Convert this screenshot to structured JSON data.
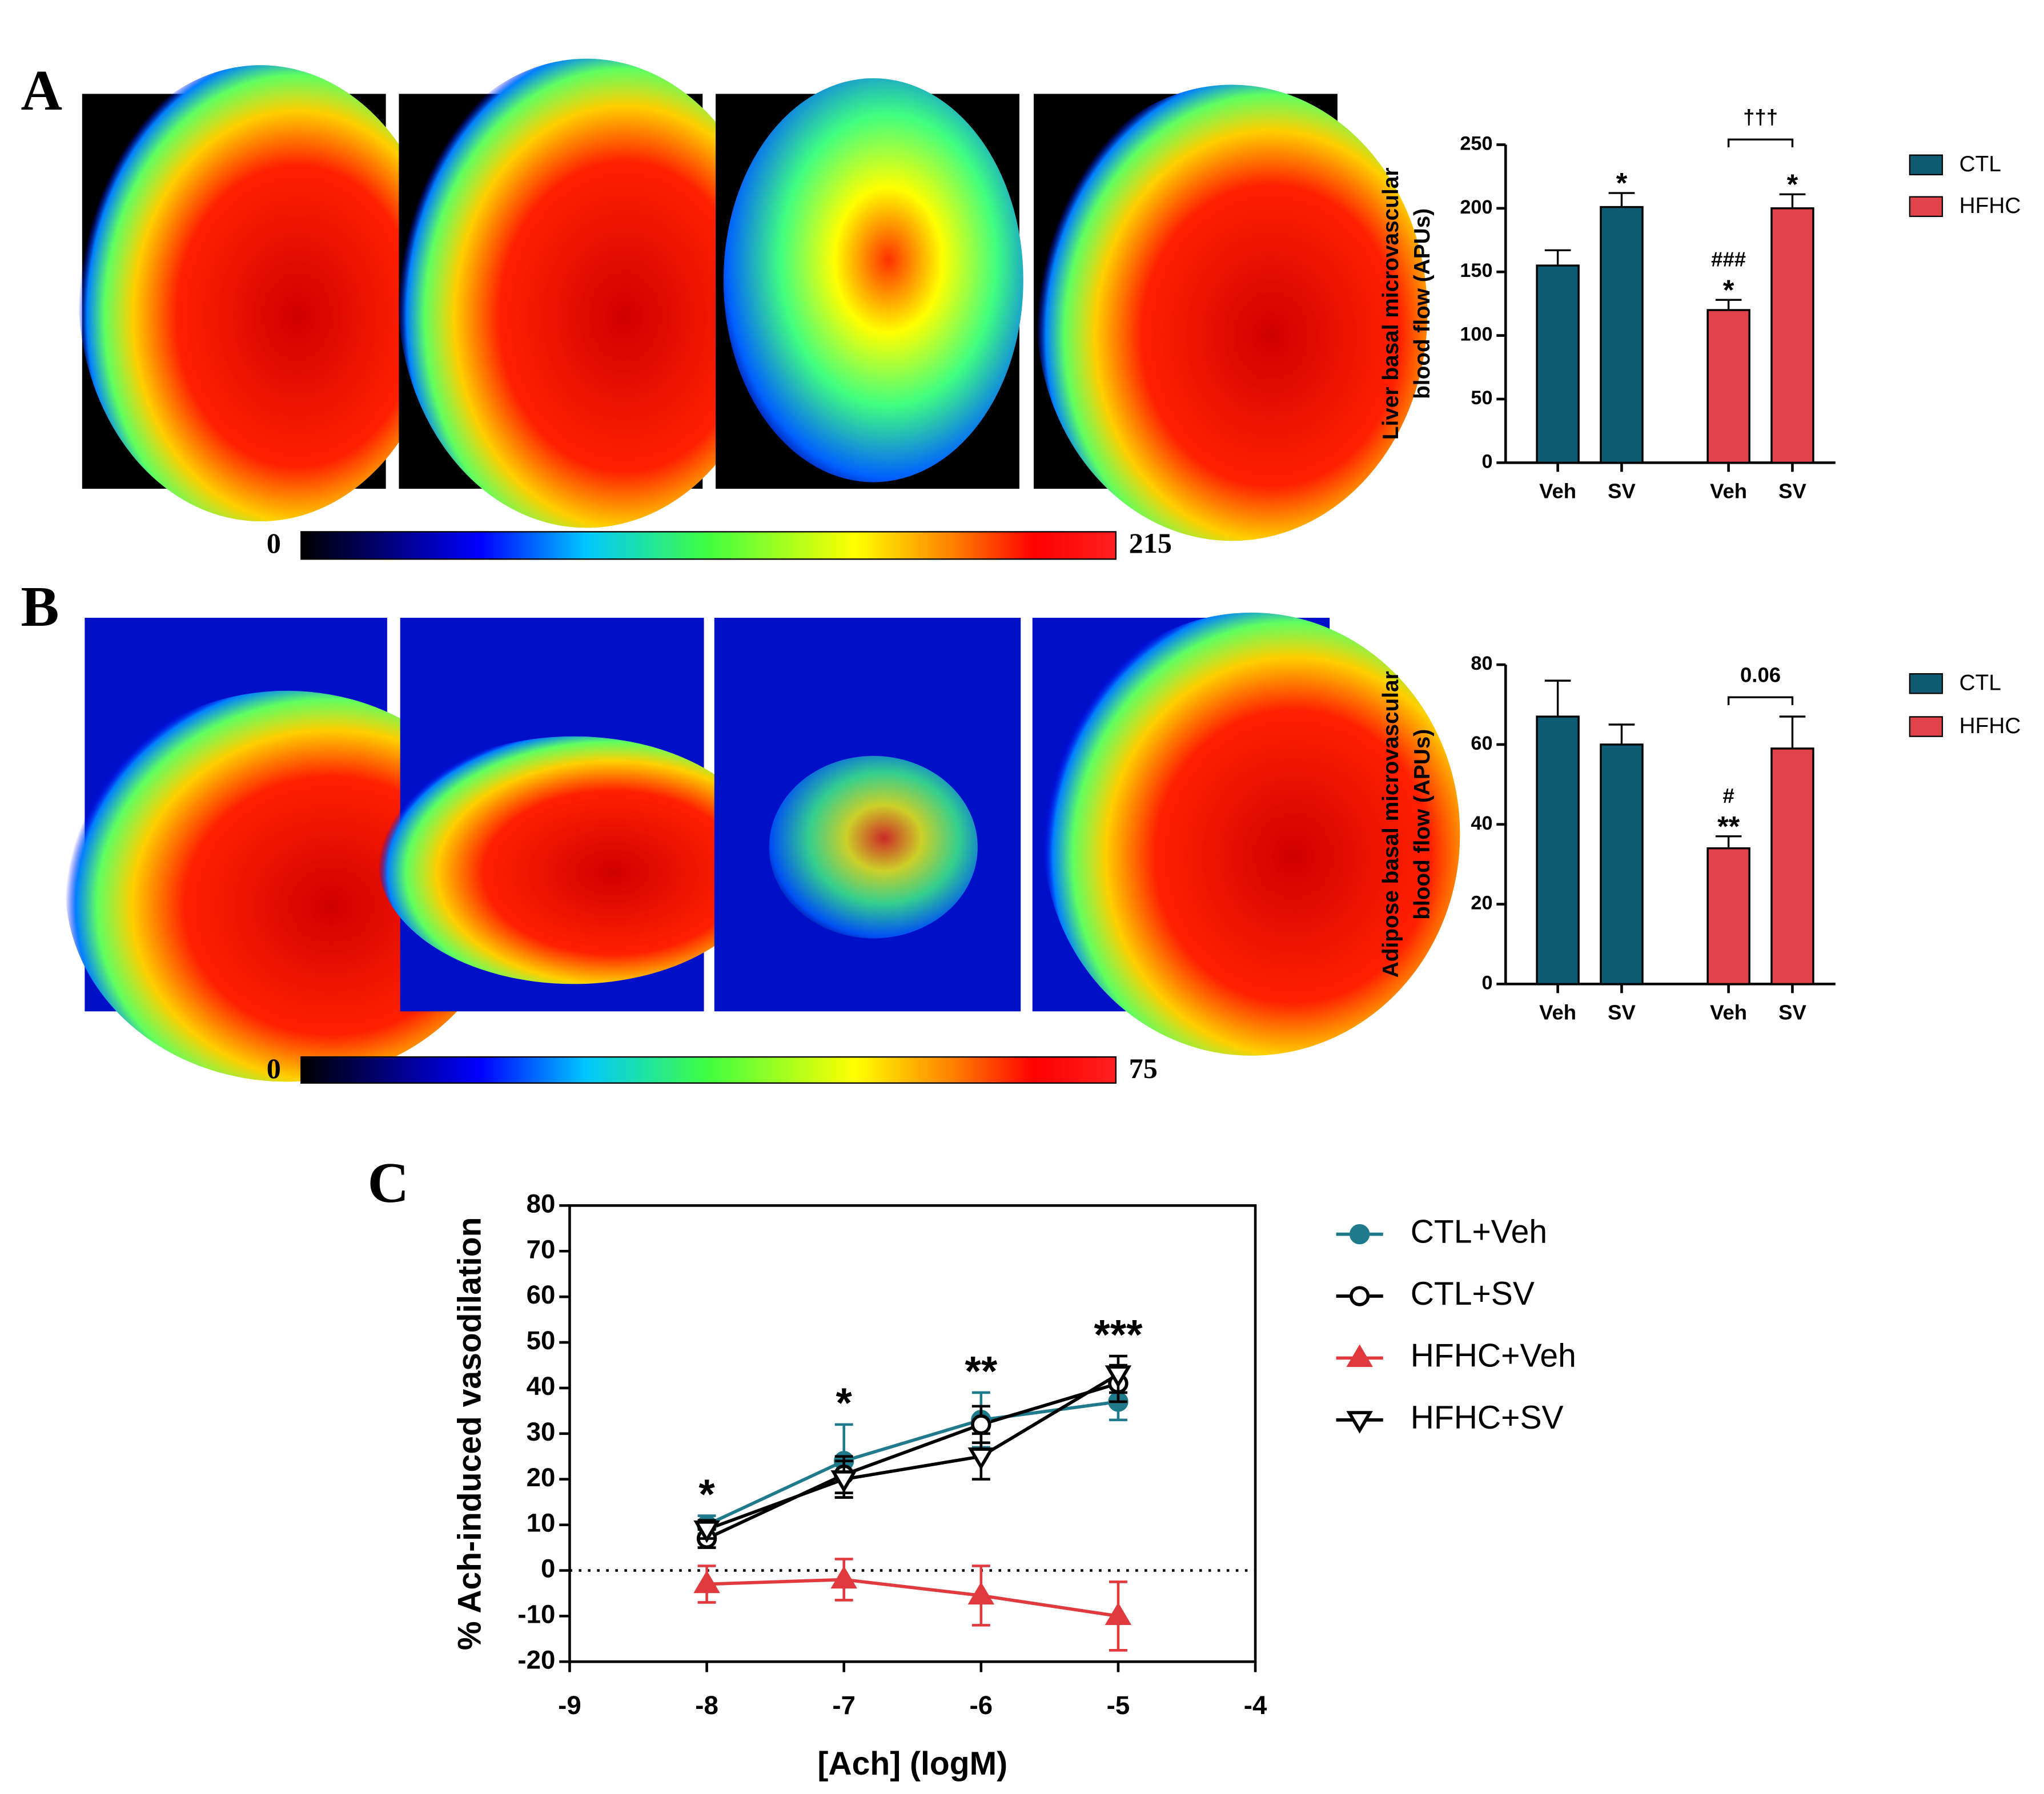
{
  "panel_labels": [
    "A",
    "B",
    "C"
  ],
  "colorbars": [
    {
      "min": 0,
      "max": 215
    },
    {
      "min": 0,
      "max": 75
    }
  ],
  "chart_data": [
    {
      "type": "bar",
      "y_label": [
        "Liver basal microvascular",
        "blood flow (APUs)"
      ],
      "categories": [
        "Veh",
        "SV",
        "Veh",
        "SV"
      ],
      "series": [
        {
          "name": "CTL",
          "color": "#0d5c73",
          "values": [
            155,
            201,
            null,
            null
          ],
          "errors": [
            12,
            11,
            null,
            null
          ],
          "labels": [
            null,
            "*",
            null,
            null
          ]
        },
        {
          "name": "HFHC",
          "color": "#e0444a",
          "values": [
            null,
            null,
            120,
            200
          ],
          "errors": [
            null,
            null,
            8,
            11
          ],
          "labels": [
            null,
            null,
            [
              "###",
              "*"
            ],
            "*"
          ]
        }
      ],
      "comparison": "†††",
      "ylim": [
        0,
        250
      ],
      "yticks": [
        0,
        50,
        100,
        150,
        200,
        250
      ]
    },
    {
      "type": "bar",
      "y_label": [
        "Adipose basal microvascular",
        "blood flow (APUs)"
      ],
      "categories": [
        "Veh",
        "SV",
        "Veh",
        "SV"
      ],
      "series": [
        {
          "name": "CTL",
          "color": "#0d5c73",
          "values": [
            67,
            60,
            null,
            null
          ],
          "errors": [
            9,
            5,
            null,
            null
          ],
          "labels": [
            null,
            null,
            null,
            null
          ]
        },
        {
          "name": "HFHC",
          "color": "#e0444a",
          "values": [
            null,
            null,
            34,
            59
          ],
          "errors": [
            null,
            null,
            3,
            8
          ],
          "labels": [
            null,
            null,
            [
              "#",
              "**"
            ],
            null
          ]
        }
      ],
      "comparison": "0.06",
      "ylim": [
        0,
        80
      ],
      "yticks": [
        0,
        20,
        40,
        60,
        80
      ]
    },
    {
      "type": "line",
      "y_label": "% Ach-induced vasodilation",
      "x_label": "[Ach] (logM)",
      "x": [
        -8,
        -7,
        -6,
        -5
      ],
      "series": [
        {
          "name": "CTL+Veh",
          "color": "#1f7a8c",
          "marker": "circle-filled",
          "values": [
            10,
            24,
            33,
            37
          ],
          "errors": [
            2,
            8,
            6,
            4
          ]
        },
        {
          "name": "CTL+SV",
          "color": "#000000",
          "marker": "circle-open",
          "values": [
            7,
            21,
            32,
            41
          ],
          "errors": [
            2,
            4,
            4,
            4
          ]
        },
        {
          "name": "HFHC+Veh",
          "color": "#e0393e",
          "marker": "triangle-up",
          "values": [
            -3,
            -2,
            -5.5,
            -10
          ],
          "errors": [
            4,
            4.5,
            6.5,
            7.5
          ]
        },
        {
          "name": "HFHC+SV",
          "color": "#000000",
          "marker": "triangle-down",
          "values": [
            9,
            20,
            25,
            43
          ],
          "errors": [
            2,
            4,
            5,
            4
          ]
        }
      ],
      "annotations": [
        "*",
        "*",
        "**",
        "***"
      ],
      "hline": 0,
      "xlim": [
        -9,
        -4
      ],
      "xticks": [
        -9,
        -8,
        -7,
        -6,
        -5,
        -4
      ],
      "ylim": [
        -20,
        80
      ],
      "yticks": [
        -20,
        -10,
        0,
        10,
        20,
        30,
        40,
        50,
        60,
        70,
        80
      ]
    }
  ]
}
